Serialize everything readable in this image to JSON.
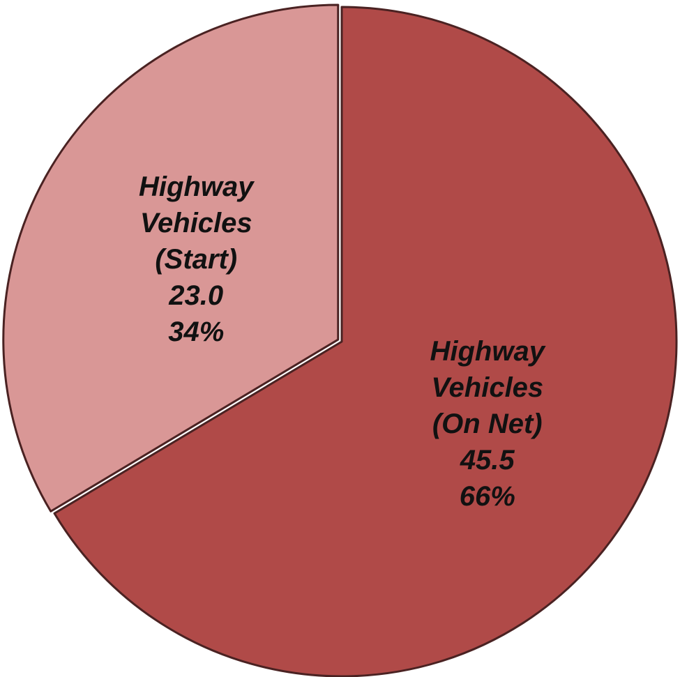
{
  "chart_data": {
    "type": "pie",
    "categories": [
      "Highway Vehicles (On Net)",
      "Highway Vehicles (Start)"
    ],
    "values": [
      45.5,
      23
    ],
    "value_labels": [
      "45.5",
      "23.0"
    ],
    "percent_labels": [
      "66%",
      "34%"
    ],
    "colors": [
      "#b04a48",
      "#d99796"
    ],
    "start_angle": 0,
    "direction": "clockwise"
  }
}
